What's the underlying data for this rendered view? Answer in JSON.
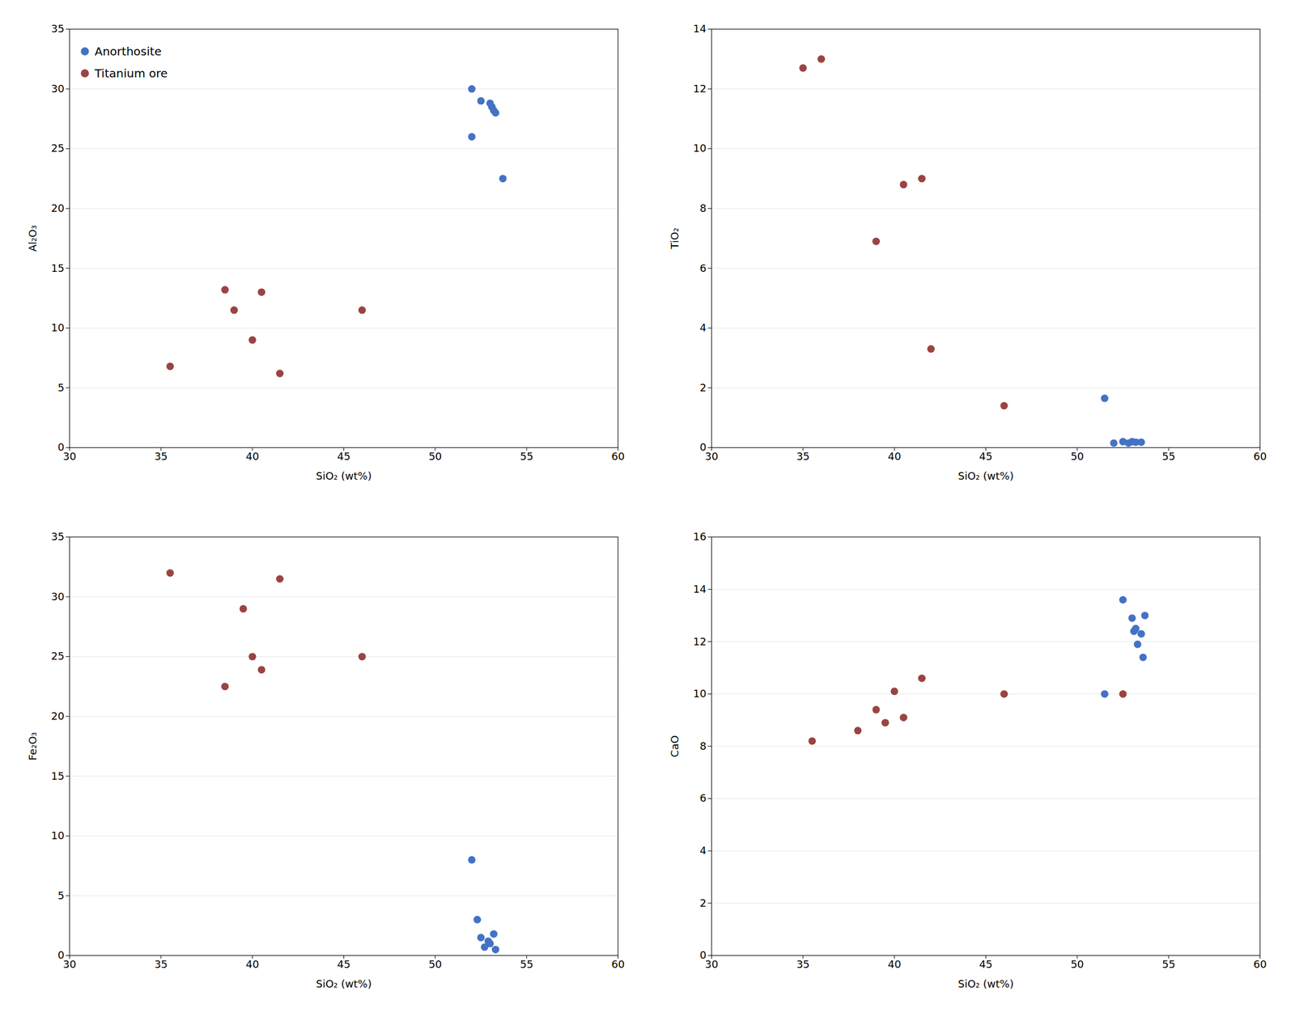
{
  "chart_data": [
    {
      "type": "scatter",
      "xlabel": "SiO₂ (wt%)",
      "ylabel": "Al₂O₃",
      "xlim": [
        30,
        60
      ],
      "xticks": [
        30,
        35,
        40,
        45,
        50,
        55,
        60
      ],
      "ylim": [
        0,
        35
      ],
      "yticks": [
        0,
        5,
        10,
        15,
        20,
        25,
        30,
        35
      ],
      "grid": "y",
      "legend": "upper left",
      "series": [
        {
          "name": "Anorthosite",
          "color": "#4472C4",
          "x": [
            52.0,
            52.5,
            53.0,
            53.1,
            53.2,
            53.3,
            52.0,
            53.7
          ],
          "values": [
            30.0,
            29.0,
            28.8,
            28.5,
            28.2,
            28.0,
            26.0,
            22.5
          ]
        },
        {
          "name": "Titanium ore",
          "color": "#9B4343",
          "x": [
            35.5,
            38.5,
            39.0,
            40.0,
            41.5,
            40.5,
            46.0
          ],
          "values": [
            6.8,
            13.2,
            11.5,
            9.0,
            6.2,
            13.0,
            11.5
          ]
        }
      ]
    },
    {
      "type": "scatter",
      "xlabel": "SiO₂ (wt%)",
      "ylabel": "TiO₂",
      "xlim": [
        30,
        60
      ],
      "xticks": [
        30,
        35,
        40,
        45,
        50,
        55,
        60
      ],
      "ylim": [
        0,
        14
      ],
      "yticks": [
        0,
        2,
        4,
        6,
        8,
        10,
        12,
        14
      ],
      "grid": "y",
      "series": [
        {
          "name": "Anorthosite",
          "color": "#4472C4",
          "x": [
            51.5,
            52.0,
            52.5,
            52.8,
            53.0,
            53.2,
            53.5
          ],
          "values": [
            1.65,
            0.15,
            0.2,
            0.15,
            0.2,
            0.18,
            0.18
          ]
        },
        {
          "name": "Titanium ore",
          "color": "#9B4343",
          "x": [
            35.0,
            36.0,
            39.0,
            40.5,
            41.5,
            42.0,
            46.0
          ],
          "values": [
            12.7,
            13.0,
            6.9,
            8.8,
            9.0,
            3.3,
            1.4
          ]
        }
      ]
    },
    {
      "type": "scatter",
      "xlabel": "SiO₂ (wt%)",
      "ylabel": "Fe₂O₃",
      "xlim": [
        30,
        60
      ],
      "xticks": [
        30,
        35,
        40,
        45,
        50,
        55,
        60
      ],
      "ylim": [
        0,
        35
      ],
      "yticks": [
        0,
        5,
        10,
        15,
        20,
        25,
        30,
        35
      ],
      "grid": "y",
      "series": [
        {
          "name": "Anorthosite",
          "color": "#4472C4",
          "x": [
            52.0,
            52.3,
            52.5,
            52.7,
            52.9,
            53.0,
            53.2,
            53.3
          ],
          "values": [
            8.0,
            3.0,
            1.5,
            0.7,
            1.2,
            1.0,
            1.8,
            0.5
          ]
        },
        {
          "name": "Titanium ore",
          "color": "#9B4343",
          "x": [
            35.5,
            38.5,
            39.5,
            40.0,
            40.5,
            41.5,
            46.0
          ],
          "values": [
            32.0,
            22.5,
            29.0,
            25.0,
            23.9,
            31.5,
            25.0
          ]
        }
      ]
    },
    {
      "type": "scatter",
      "xlabel": "SiO₂ (wt%)",
      "ylabel": "CaO",
      "xlim": [
        30,
        60
      ],
      "xticks": [
        30,
        35,
        40,
        45,
        50,
        55,
        60
      ],
      "ylim": [
        0,
        16
      ],
      "yticks": [
        0,
        2,
        4,
        6,
        8,
        10,
        12,
        14,
        16
      ],
      "grid": "y",
      "series": [
        {
          "name": "Anorthosite",
          "color": "#4472C4",
          "x": [
            51.5,
            52.5,
            53.0,
            53.1,
            53.2,
            53.3,
            53.5,
            53.6,
            53.7
          ],
          "values": [
            10.0,
            13.6,
            12.9,
            12.4,
            12.5,
            11.9,
            12.3,
            11.4,
            13.0
          ]
        },
        {
          "name": "Titanium ore",
          "color": "#9B4343",
          "x": [
            35.5,
            38.0,
            39.0,
            39.5,
            40.0,
            40.5,
            41.5,
            46.0,
            52.5
          ],
          "values": [
            8.2,
            8.6,
            9.4,
            8.9,
            10.1,
            9.1,
            10.6,
            10.0,
            10.0
          ]
        }
      ]
    }
  ]
}
